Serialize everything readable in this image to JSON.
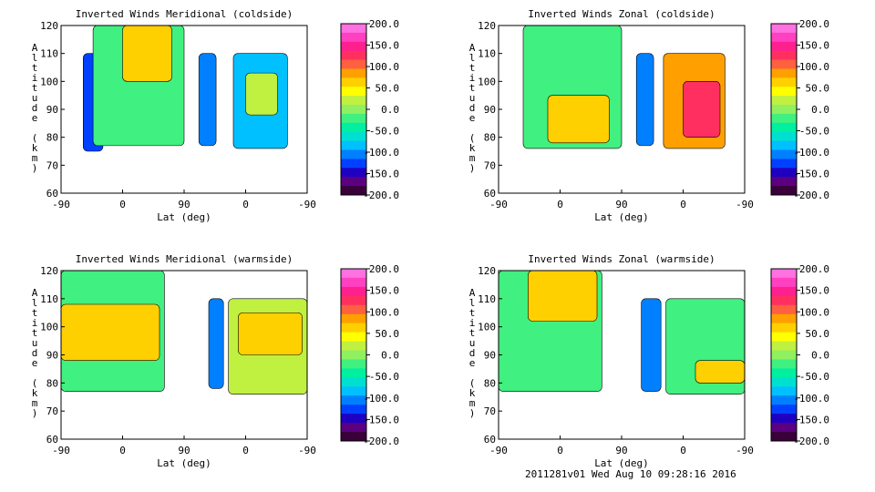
{
  "footer": {
    "stamp": "2011281v01 Wed Aug 10 09:28:16 2016"
  },
  "colorbar": {
    "ticks": [
      "200.0",
      "150.0",
      "100.0",
      "50.0",
      "0.0",
      "-50.0",
      "-100.0",
      "-150.0",
      "-200.0"
    ],
    "colors": [
      "#3a003a",
      "#5a0080",
      "#2000c0",
      "#0040ff",
      "#0080ff",
      "#00c0ff",
      "#00e0d0",
      "#00f0a0",
      "#40f080",
      "#90f060",
      "#c0f040",
      "#ffff00",
      "#ffd000",
      "#ffa000",
      "#ff6040",
      "#ff3060",
      "#ff2090",
      "#ff40c0",
      "#ff70e0"
    ]
  },
  "chart_data": [
    {
      "type": "heatmap",
      "title": "Inverted Winds Meridional (coldside)",
      "xlabel": "Lat (deg)",
      "ylabel": "Altitude (km)",
      "xticks": [
        "-90",
        "0",
        "90",
        "0",
        "-90"
      ],
      "yticks": [
        "120",
        "110",
        "100",
        "90",
        "80",
        "70",
        "60"
      ],
      "ylim": [
        60,
        120
      ],
      "zlim": [
        -200,
        200
      ]
    },
    {
      "type": "heatmap",
      "title": "Inverted Winds Zonal (coldside)",
      "xlabel": "Lat (deg)",
      "ylabel": "Altitude (km)",
      "xticks": [
        "-90",
        "0",
        "90",
        "0",
        "-90"
      ],
      "yticks": [
        "120",
        "110",
        "100",
        "90",
        "80",
        "70",
        "60"
      ],
      "ylim": [
        60,
        120
      ],
      "zlim": [
        -200,
        200
      ]
    },
    {
      "type": "heatmap",
      "title": "Inverted Winds Meridional (warmside)",
      "xlabel": "Lat (deg)",
      "ylabel": "Altitude (km)",
      "xticks": [
        "-90",
        "0",
        "90",
        "0",
        "-90"
      ],
      "yticks": [
        "120",
        "110",
        "100",
        "90",
        "80",
        "70",
        "60"
      ],
      "ylim": [
        60,
        120
      ],
      "zlim": [
        -200,
        200
      ]
    },
    {
      "type": "heatmap",
      "title": "Inverted Winds Zonal (warmside)",
      "xlabel": "Lat (deg)",
      "ylabel": "Altitude (km)",
      "xticks": [
        "-90",
        "0",
        "90",
        "0",
        "-90"
      ],
      "yticks": [
        "120",
        "110",
        "100",
        "90",
        "80",
        "70",
        "60"
      ],
      "ylim": [
        60,
        120
      ],
      "zlim": [
        -200,
        200
      ]
    }
  ]
}
